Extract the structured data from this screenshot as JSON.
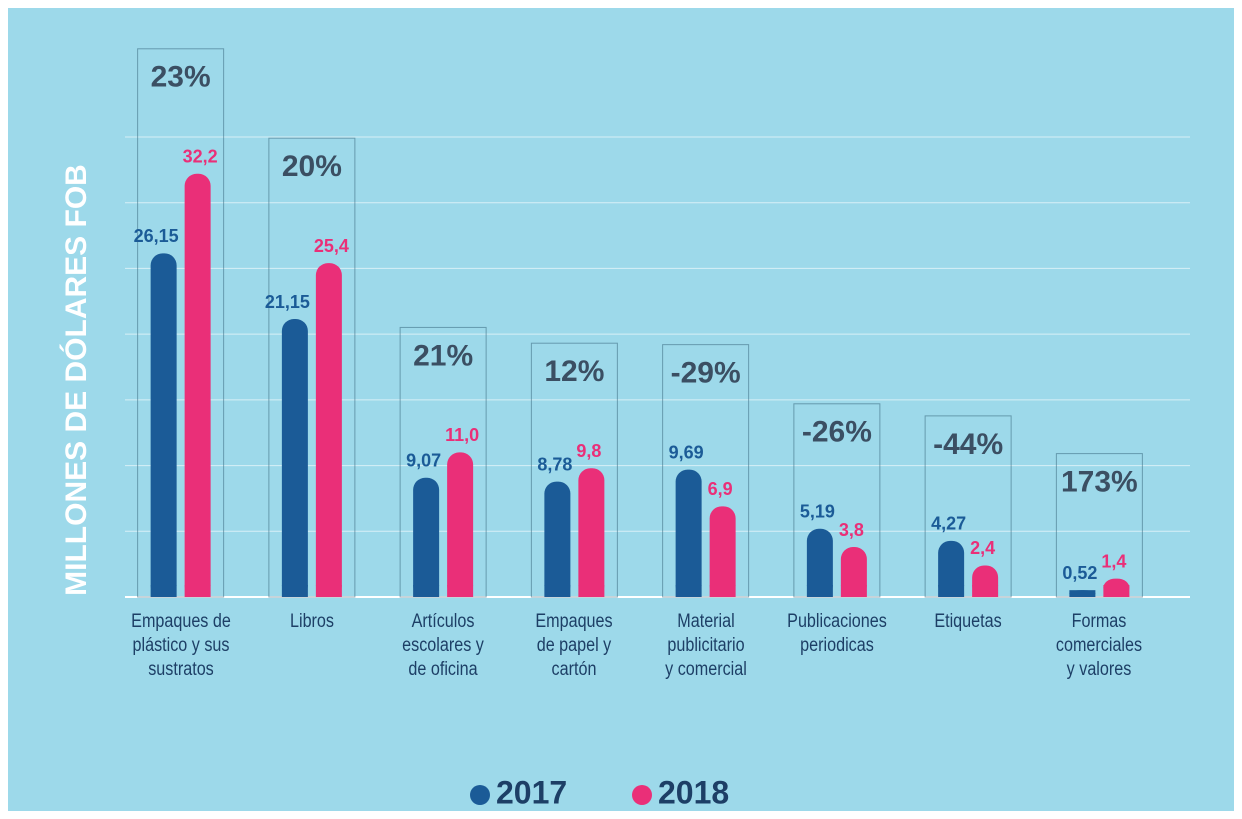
{
  "chart_data": {
    "type": "bar",
    "y_label": "MILLONES DE DÓLARES FOB",
    "categories": [
      "Empaques de\nplástico y sus\nsustratos",
      "Libros",
      "Artículos\nescolares y\nde oficina",
      "Empaques\nde papel y\ncartón",
      "Material\npublicitario\ny comercial",
      "Publicaciones\nperiodicas",
      "Etiquetas",
      "Formas\ncomerciales\ny valores"
    ],
    "series": [
      {
        "name": "2017",
        "color": "#1b5b97",
        "values": [
          26.15,
          21.15,
          9.07,
          8.78,
          9.69,
          5.19,
          4.27,
          0.52
        ],
        "value_labels": [
          "26,15",
          "21,15",
          "9,07",
          "8,78",
          "9,69",
          "5,19",
          "4,27",
          "0,52"
        ]
      },
      {
        "name": "2018",
        "color": "#ea2f78",
        "values": [
          32.2,
          25.4,
          11.0,
          9.8,
          6.9,
          3.8,
          2.4,
          1.4
        ],
        "value_labels": [
          "32,2",
          "25,4",
          "11,0",
          "9,8",
          "6,9",
          "3,8",
          "2,4",
          "1,4"
        ]
      }
    ],
    "annotations": [
      "23%",
      "20%",
      "21%",
      "12%",
      "-29%",
      "-26%",
      "-44%",
      "173%"
    ],
    "ylim": [
      0,
      35
    ],
    "yticks": [
      0,
      5,
      10,
      15,
      20,
      25,
      30,
      35
    ],
    "grid": true
  }
}
